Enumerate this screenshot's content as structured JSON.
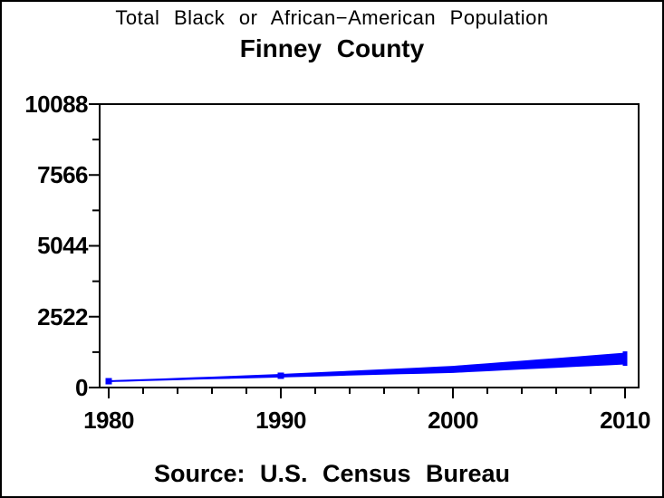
{
  "colors": {
    "background": "#ffffff",
    "axis": "#000000",
    "text": "#000000",
    "line": "#0000ff"
  },
  "chart_data": {
    "type": "line",
    "title": "Total Black or African−American Population",
    "subtitle": "Finney County",
    "source": "Source: U.S. Census Bureau",
    "x": [
      1980,
      1990,
      2000,
      2010
    ],
    "series": [
      {
        "name": "Total Black or African-American population",
        "color": "#0000ff",
        "values": [
          225,
          420,
          645,
          1030
        ]
      }
    ],
    "xlabel": "",
    "ylabel": "",
    "xlim": [
      1980,
      2010
    ],
    "ylim": [
      0,
      10088
    ],
    "y_ticks_major": [
      0,
      2522,
      5044,
      7566,
      10088
    ],
    "y_ticks_minor": [
      1261,
      3783,
      6305,
      8827
    ],
    "y_tick_labels": [
      "10088",
      "7566",
      "5044",
      "2522",
      "0"
    ],
    "x_ticks_major": [
      1980,
      1990,
      2000,
      2010
    ],
    "x_tick_labels": [
      "1980",
      "1990",
      "2000",
      "2010"
    ],
    "x_minor_tick_step": 2,
    "grid": false,
    "legend": false,
    "marker": "square",
    "line_style": "tapered-band"
  }
}
